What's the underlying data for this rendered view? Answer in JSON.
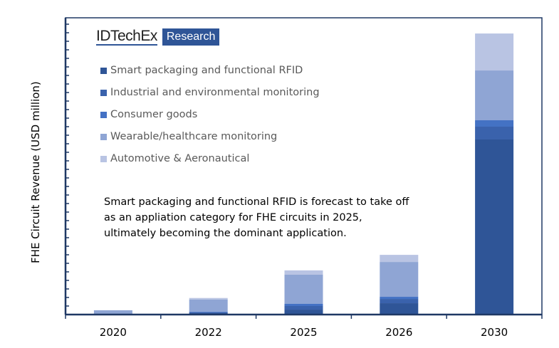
{
  "logo": {
    "brand": "IDTechEx",
    "tag": "Research"
  },
  "annotation": "Smart packaging and functional RFID is forecast to take off as an appliation category for FHE circuits in 2025, ultimately becoming the dominant application.",
  "chart_data": {
    "type": "bar",
    "stacked": true,
    "title": "",
    "xlabel": "",
    "ylabel": "FHE Circuit Revenue (USD million)",
    "ylim": [
      0,
      34.75
    ],
    "y_tick_labels_shown": false,
    "grid": false,
    "legend_placement": "top-left",
    "categories": [
      "2020",
      "2022",
      "2025",
      "2026",
      "2030"
    ],
    "series": [
      {
        "name": "Smart packaging and functional RFID",
        "color": "#2F5597",
        "values": [
          0,
          0.17,
          0.58,
          1.33,
          20.5
        ]
      },
      {
        "name": "Industrial and environmental monitoring",
        "color": "#3A62AC",
        "values": [
          0,
          0.1,
          0.42,
          0.5,
          1.5
        ]
      },
      {
        "name": "Consumer goods",
        "color": "#4472C4",
        "values": [
          0,
          0.08,
          0.25,
          0.25,
          0.75
        ]
      },
      {
        "name": "Wearable/healthcare monitoring",
        "color": "#8FA5D4",
        "values": [
          0.5,
          1.42,
          3.42,
          4.08,
          5.83
        ]
      },
      {
        "name": "Automotive & Aeronautical",
        "color": "#B9C4E3",
        "values": [
          0,
          0.17,
          0.5,
          0.83,
          4.33
        ]
      }
    ],
    "axis_color": "#1F3864"
  }
}
